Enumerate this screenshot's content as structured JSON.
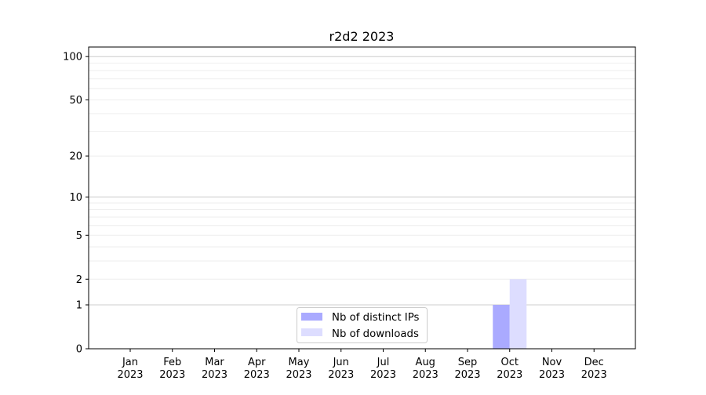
{
  "chart_data": {
    "type": "bar",
    "title": "r2d2 2023",
    "xlabel": "",
    "ylabel": "",
    "categories": [
      "Jan\n2023",
      "Feb\n2023",
      "Mar\n2023",
      "Apr\n2023",
      "May\n2023",
      "Jun\n2023",
      "Jul\n2023",
      "Aug\n2023",
      "Sep\n2023",
      "Oct\n2023",
      "Nov\n2023",
      "Dec\n2023"
    ],
    "series": [
      {
        "name": "Nb of distinct IPs",
        "color": "#aaaaff",
        "values": [
          0,
          0,
          0,
          0,
          0,
          0,
          0,
          0,
          0,
          1,
          0,
          0
        ]
      },
      {
        "name": "Nb of downloads",
        "color": "#ddddff",
        "values": [
          0,
          0,
          0,
          0,
          0,
          0,
          0,
          0,
          0,
          2,
          0,
          0
        ]
      }
    ],
    "yscale": "symlog",
    "ylim": [
      0,
      116
    ],
    "yticks": [
      0,
      1,
      2,
      5,
      10,
      20,
      50,
      100
    ],
    "grid": true,
    "legend": "lower-center"
  }
}
